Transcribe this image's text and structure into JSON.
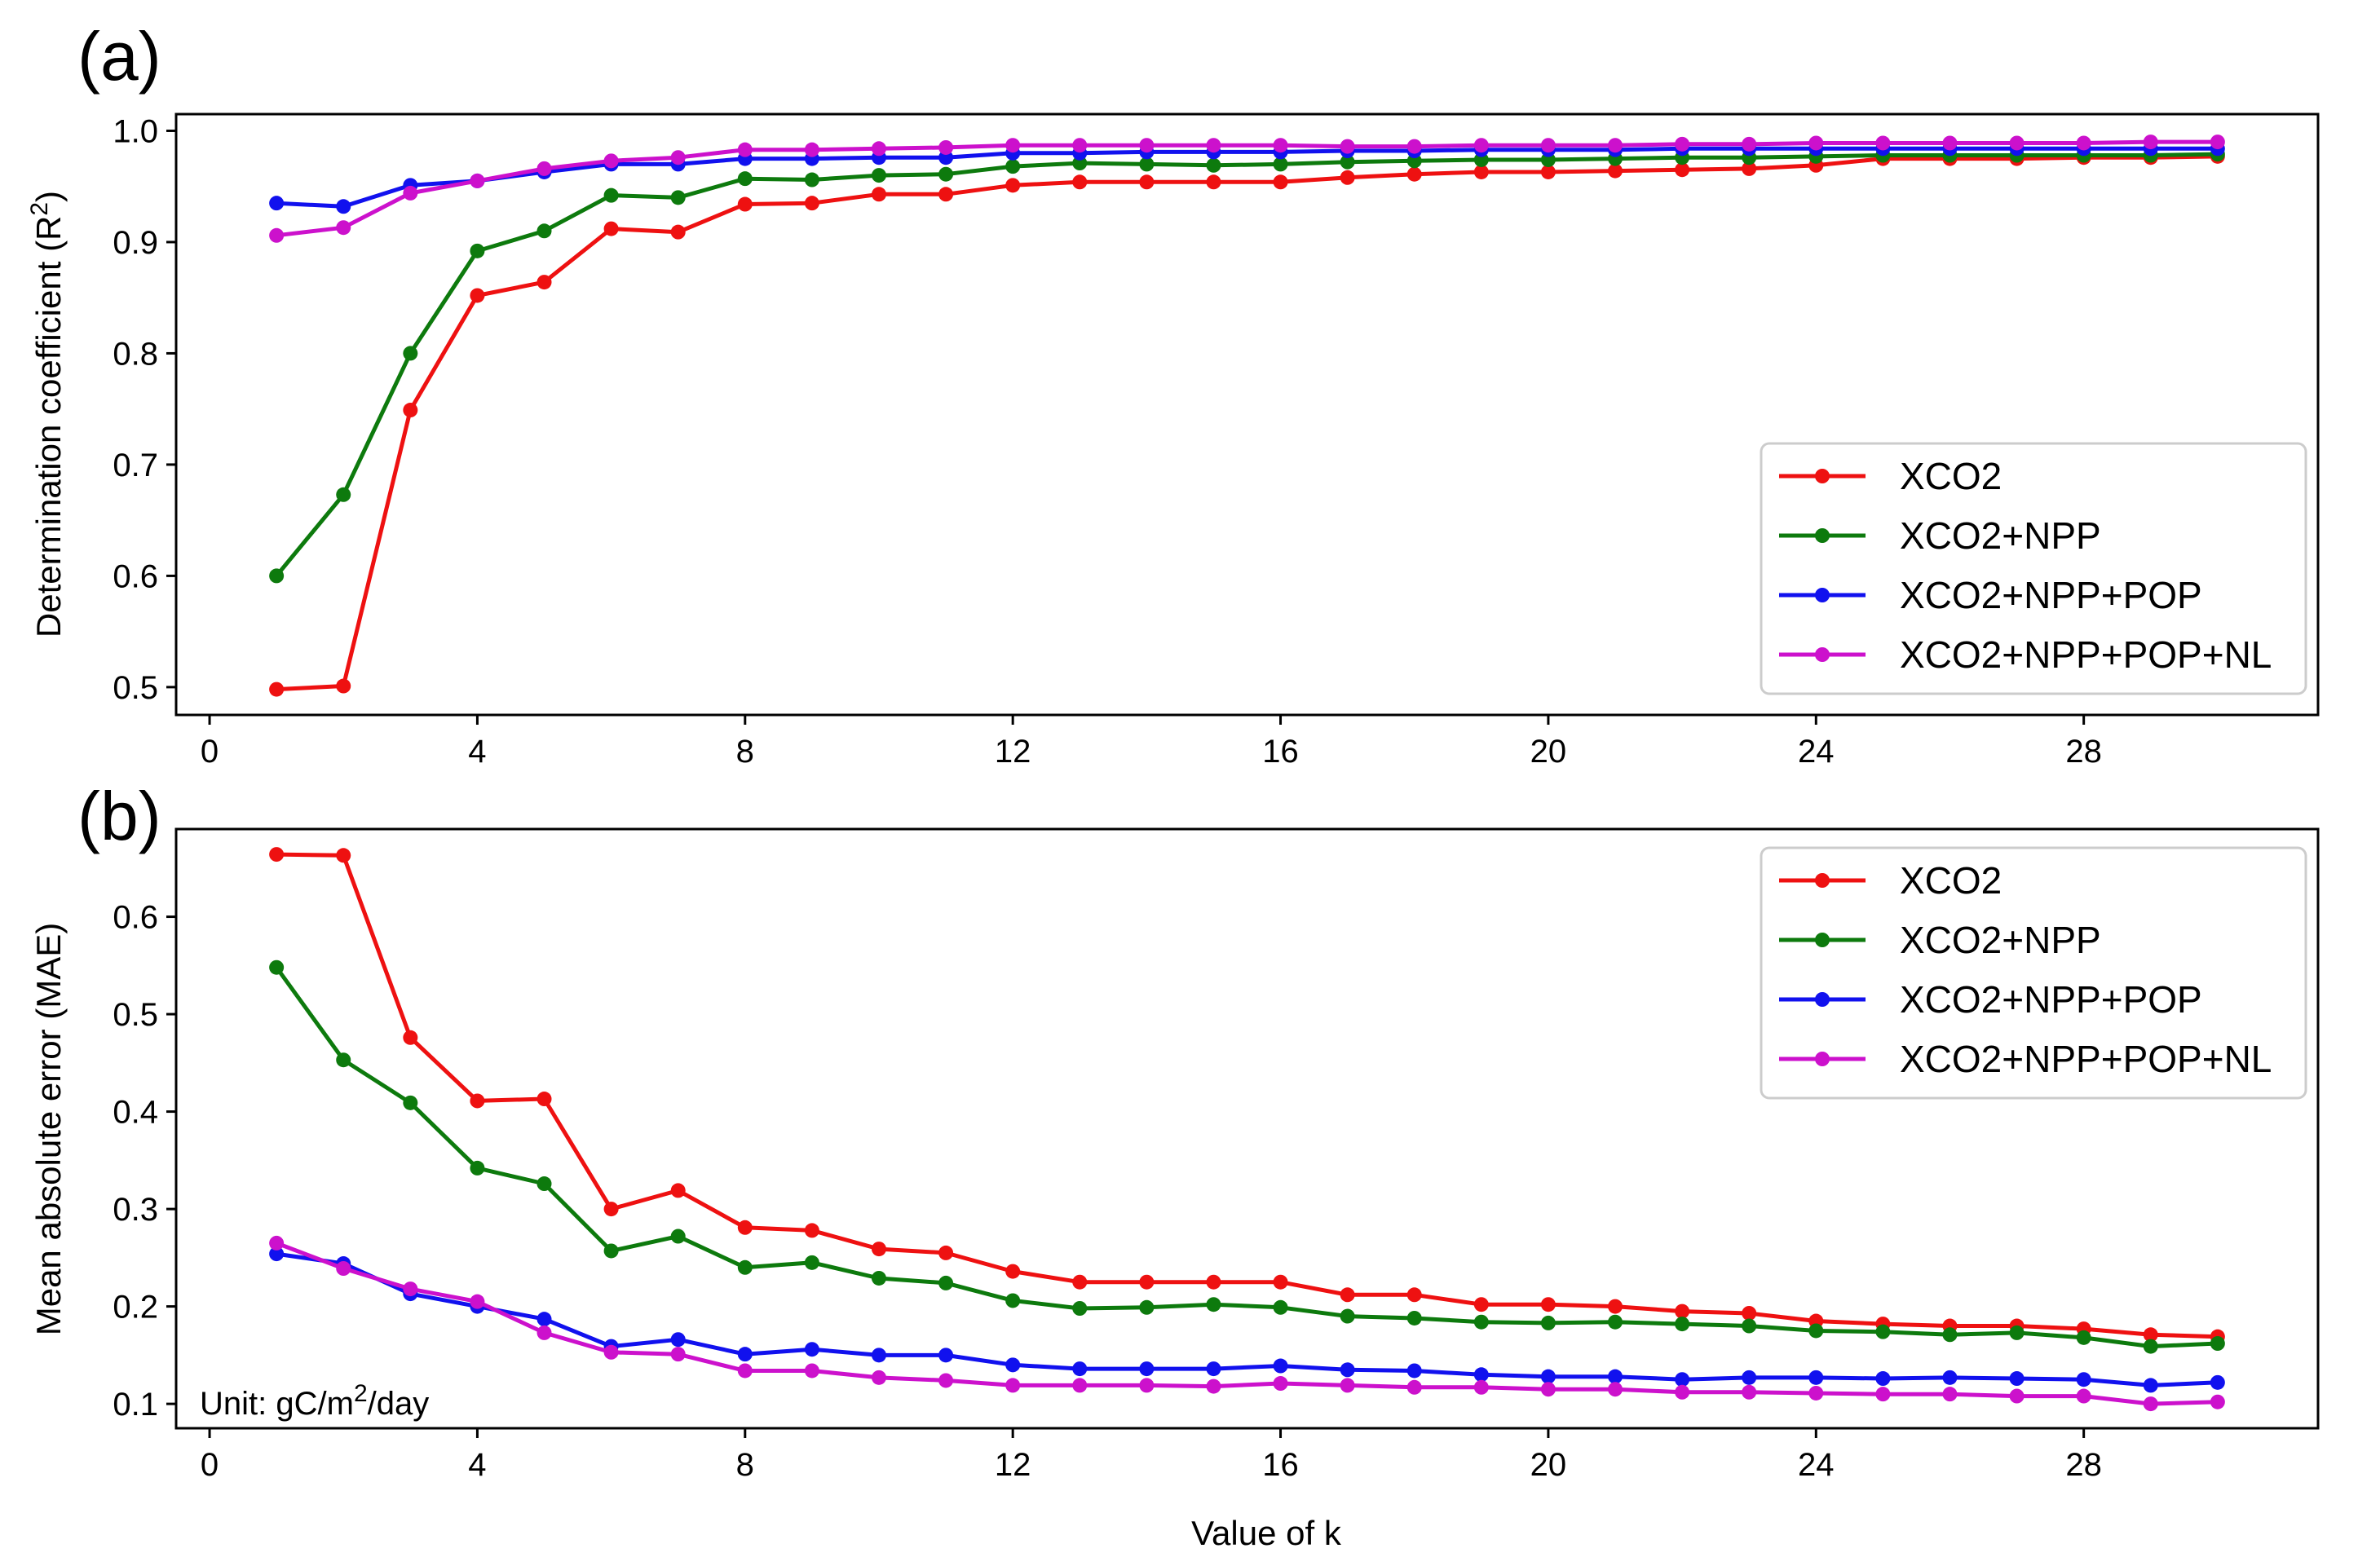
{
  "chart_data": [
    {
      "type": "line",
      "panel": "(a)",
      "xlabel": "",
      "ylabel": "Determination coefficient (R²)",
      "ylabel_main": "Determination coefficient (R",
      "ylabel_sup": "2",
      "ylabel_end": ")",
      "xlim": [
        -0.5,
        31.5
      ],
      "ylim": [
        0.475,
        1.015
      ],
      "xticks": [
        0,
        4,
        8,
        12,
        16,
        20,
        24,
        28
      ],
      "yticks": [
        0.5,
        0.6,
        0.7,
        0.8,
        0.9,
        1.0
      ],
      "ytick_labels": [
        "0.5",
        "0.6",
        "0.7",
        "0.8",
        "0.9",
        "1.0"
      ],
      "legend_position": "lower-right",
      "x": [
        1,
        2,
        3,
        4,
        5,
        6,
        7,
        8,
        9,
        10,
        11,
        12,
        13,
        14,
        15,
        16,
        17,
        18,
        19,
        20,
        21,
        22,
        23,
        24,
        25,
        26,
        27,
        28,
        29,
        30
      ],
      "series": [
        {
          "name": "XCO2",
          "color": "#ee1111",
          "values": [
            0.498,
            0.501,
            0.749,
            0.852,
            0.864,
            0.912,
            0.909,
            0.934,
            0.935,
            0.943,
            0.943,
            0.951,
            0.954,
            0.954,
            0.954,
            0.954,
            0.958,
            0.961,
            0.963,
            0.963,
            0.964,
            0.965,
            0.966,
            0.969,
            0.975,
            0.975,
            0.975,
            0.976,
            0.976,
            0.977
          ]
        },
        {
          "name": "XCO2+NPP",
          "color": "#0d7a0d",
          "values": [
            0.6,
            0.673,
            0.8,
            0.892,
            0.91,
            0.942,
            0.94,
            0.957,
            0.956,
            0.96,
            0.961,
            0.968,
            0.971,
            0.97,
            0.969,
            0.97,
            0.972,
            0.973,
            0.974,
            0.974,
            0.975,
            0.976,
            0.976,
            0.977,
            0.978,
            0.978,
            0.978,
            0.978,
            0.978,
            0.979
          ]
        },
        {
          "name": "XCO2+NPP+POP",
          "color": "#1111ee",
          "values": [
            0.935,
            0.932,
            0.951,
            0.955,
            0.963,
            0.97,
            0.97,
            0.975,
            0.975,
            0.976,
            0.976,
            0.98,
            0.98,
            0.981,
            0.981,
            0.981,
            0.982,
            0.982,
            0.983,
            0.983,
            0.983,
            0.984,
            0.984,
            0.984,
            0.984,
            0.984,
            0.984,
            0.984,
            0.984,
            0.984
          ]
        },
        {
          "name": "XCO2+NPP+POP+NL",
          "color": "#cc11cc",
          "values": [
            0.906,
            0.913,
            0.944,
            0.955,
            0.966,
            0.973,
            0.976,
            0.983,
            0.983,
            0.984,
            0.985,
            0.987,
            0.987,
            0.987,
            0.987,
            0.987,
            0.986,
            0.986,
            0.987,
            0.987,
            0.987,
            0.988,
            0.988,
            0.989,
            0.989,
            0.989,
            0.989,
            0.989,
            0.99,
            0.99
          ]
        }
      ]
    },
    {
      "type": "line",
      "panel": "(b)",
      "xlabel": "Value of k",
      "ylabel": "Mean absolute error (MAE)",
      "xlim": [
        -0.5,
        31.5
      ],
      "ylim": [
        0.075,
        0.69
      ],
      "xticks": [
        0,
        4,
        8,
        12,
        16,
        20,
        24,
        28
      ],
      "yticks": [
        0.1,
        0.2,
        0.3,
        0.4,
        0.5,
        0.6
      ],
      "ytick_labels": [
        "0.1",
        "0.2",
        "0.3",
        "0.4",
        "0.5",
        "0.6"
      ],
      "legend_position": "top-right",
      "annotation": {
        "prefix": "Unit: gC/m",
        "sup": "2",
        "suffix": "/day"
      },
      "x": [
        1,
        2,
        3,
        4,
        5,
        6,
        7,
        8,
        9,
        10,
        11,
        12,
        13,
        14,
        15,
        16,
        17,
        18,
        19,
        20,
        21,
        22,
        23,
        24,
        25,
        26,
        27,
        28,
        29,
        30
      ],
      "series": [
        {
          "name": "XCO2",
          "color": "#ee1111",
          "values": [
            0.664,
            0.663,
            0.476,
            0.411,
            0.413,
            0.3,
            0.319,
            0.281,
            0.278,
            0.259,
            0.255,
            0.236,
            0.225,
            0.225,
            0.225,
            0.225,
            0.212,
            0.212,
            0.202,
            0.202,
            0.2,
            0.195,
            0.193,
            0.185,
            0.182,
            0.18,
            0.18,
            0.177,
            0.171,
            0.169
          ]
        },
        {
          "name": "XCO2+NPP",
          "color": "#0d7a0d",
          "values": [
            0.548,
            0.453,
            0.409,
            0.342,
            0.326,
            0.257,
            0.272,
            0.24,
            0.245,
            0.229,
            0.224,
            0.206,
            0.198,
            0.199,
            0.202,
            0.199,
            0.19,
            0.188,
            0.184,
            0.183,
            0.184,
            0.182,
            0.18,
            0.175,
            0.174,
            0.171,
            0.173,
            0.168,
            0.159,
            0.162
          ]
        },
        {
          "name": "XCO2+NPP+POP",
          "color": "#1111ee",
          "values": [
            0.254,
            0.244,
            0.213,
            0.2,
            0.187,
            0.159,
            0.166,
            0.151,
            0.156,
            0.15,
            0.15,
            0.14,
            0.136,
            0.136,
            0.136,
            0.139,
            0.135,
            0.134,
            0.13,
            0.128,
            0.128,
            0.125,
            0.127,
            0.127,
            0.126,
            0.127,
            0.126,
            0.125,
            0.119,
            0.122
          ]
        },
        {
          "name": "XCO2+NPP+POP+NL",
          "color": "#cc11cc",
          "values": [
            0.265,
            0.239,
            0.218,
            0.205,
            0.173,
            0.153,
            0.151,
            0.134,
            0.134,
            0.127,
            0.124,
            0.119,
            0.119,
            0.119,
            0.118,
            0.121,
            0.119,
            0.117,
            0.117,
            0.115,
            0.115,
            0.112,
            0.112,
            0.111,
            0.11,
            0.11,
            0.108,
            0.108,
            0.1,
            0.102
          ]
        }
      ]
    }
  ]
}
